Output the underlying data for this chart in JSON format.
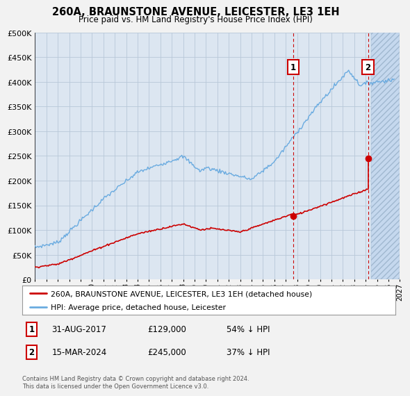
{
  "title": "260A, BRAUNSTONE AVENUE, LEICESTER, LE3 1EH",
  "subtitle": "Price paid vs. HM Land Registry's House Price Index (HPI)",
  "legend_line1": "260A, BRAUNSTONE AVENUE, LEICESTER, LE3 1EH (detached house)",
  "legend_line2": "HPI: Average price, detached house, Leicester",
  "transaction1_date": 2017.66,
  "transaction1_price": 129000,
  "transaction1_text": "31-AUG-2017",
  "transaction1_pct": "54% ↓ HPI",
  "transaction2_date": 2024.21,
  "transaction2_price": 245000,
  "transaction2_text": "15-MAR-2024",
  "transaction2_pct": "37% ↓ HPI",
  "footer": "Contains HM Land Registry data © Crown copyright and database right 2024.\nThis data is licensed under the Open Government Licence v3.0.",
  "xmin": 1995,
  "xmax": 2027,
  "ymin": 0,
  "ymax": 500000,
  "hpi_color": "#6aabe0",
  "price_color": "#cc0000",
  "plot_bg_color": "#dce6f1",
  "fig_bg_color": "#f2f2f2",
  "hatch_bg_color": "#c5d8ee",
  "annotation_box_color": "#cc0000",
  "grid_color": "#b8c8d8"
}
